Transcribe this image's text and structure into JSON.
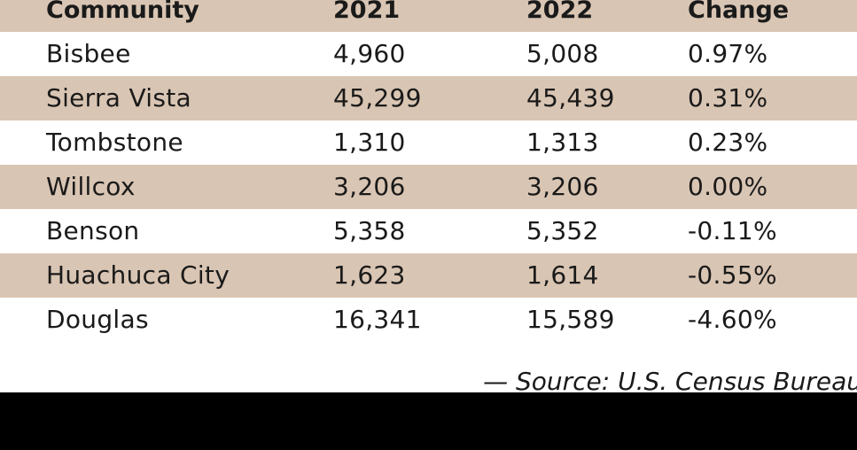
{
  "chart_data": {
    "type": "table",
    "columns": [
      "Community",
      "2021",
      "2022",
      "Change"
    ],
    "rows": [
      {
        "community": "Bisbee",
        "y2021": "4,960",
        "y2022": "5,008",
        "change": "0.97%"
      },
      {
        "community": "Sierra Vista",
        "y2021": "45,299",
        "y2022": "45,439",
        "change": "0.31%"
      },
      {
        "community": "Tombstone",
        "y2021": "1,310",
        "y2022": "1,313",
        "change": "0.23%"
      },
      {
        "community": "Willcox",
        "y2021": "3,206",
        "y2022": "3,206",
        "change": "0.00%"
      },
      {
        "community": "Benson",
        "y2021": "5,358",
        "y2022": "5,352",
        "change": "-0.11%"
      },
      {
        "community": "Huachuca City",
        "y2021": "1,623",
        "y2022": "1,614",
        "change": "-0.55%"
      },
      {
        "community": "Douglas",
        "y2021": "16,341",
        "y2022": "15,589",
        "change": "-4.60%"
      }
    ],
    "source": "— Source: U.S. Census Bureau"
  },
  "colors": {
    "shade": "#d9c5b3",
    "background": "#ffffff",
    "text": "#1a1a1a"
  }
}
